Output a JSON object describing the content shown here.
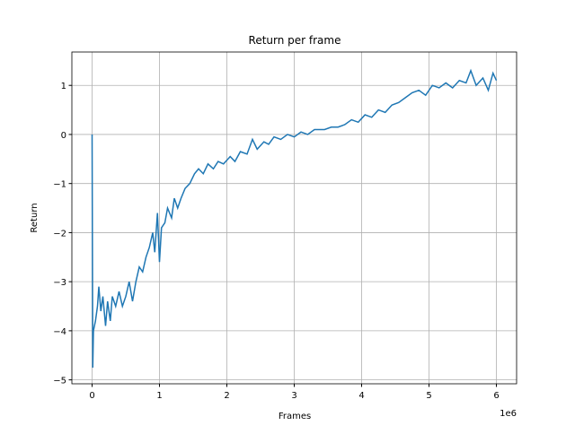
{
  "chart_data": {
    "type": "line",
    "title": "Return per frame",
    "x_label": "Frames",
    "y_label": "Return",
    "x_offset_label": "1e6",
    "x": [
      0,
      0.01,
      0.02,
      0.05,
      0.08,
      0.1,
      0.13,
      0.16,
      0.2,
      0.23,
      0.27,
      0.3,
      0.35,
      0.4,
      0.45,
      0.5,
      0.55,
      0.6,
      0.65,
      0.7,
      0.75,
      0.8,
      0.85,
      0.9,
      0.93,
      0.97,
      1.0,
      1.03,
      1.08,
      1.12,
      1.18,
      1.22,
      1.27,
      1.32,
      1.38,
      1.45,
      1.52,
      1.58,
      1.65,
      1.72,
      1.8,
      1.87,
      1.95,
      2.05,
      2.12,
      2.2,
      2.3,
      2.38,
      2.45,
      2.55,
      2.62,
      2.7,
      2.8,
      2.9,
      3.0,
      3.1,
      3.2,
      3.3,
      3.45,
      3.55,
      3.65,
      3.75,
      3.85,
      3.95,
      4.05,
      4.15,
      4.25,
      4.35,
      4.45,
      4.55,
      4.65,
      4.75,
      4.85,
      4.95,
      5.05,
      5.15,
      5.25,
      5.35,
      5.45,
      5.55,
      5.62,
      5.7,
      5.8,
      5.88,
      5.95,
      6.0
    ],
    "series": [
      {
        "color": "#1f77b4",
        "values": [
          0,
          -4.75,
          -4.0,
          -3.8,
          -3.5,
          -3.1,
          -3.6,
          -3.3,
          -3.9,
          -3.4,
          -3.8,
          -3.3,
          -3.5,
          -3.2,
          -3.5,
          -3.3,
          -3.0,
          -3.4,
          -3.0,
          -2.7,
          -2.8,
          -2.5,
          -2.3,
          -2.0,
          -2.4,
          -1.6,
          -2.6,
          -1.9,
          -1.8,
          -1.5,
          -1.7,
          -1.3,
          -1.5,
          -1.3,
          -1.1,
          -1.0,
          -0.8,
          -0.7,
          -0.8,
          -0.6,
          -0.7,
          -0.55,
          -0.6,
          -0.45,
          -0.55,
          -0.35,
          -0.4,
          -0.1,
          -0.3,
          -0.15,
          -0.2,
          -0.05,
          -0.1,
          0.0,
          -0.05,
          0.05,
          0.0,
          0.1,
          0.1,
          0.15,
          0.15,
          0.2,
          0.3,
          0.25,
          0.4,
          0.35,
          0.5,
          0.45,
          0.6,
          0.65,
          0.75,
          0.85,
          0.9,
          0.8,
          1.0,
          0.95,
          1.05,
          0.95,
          1.1,
          1.05,
          1.3,
          1.0,
          1.15,
          0.9,
          1.25,
          1.1
        ]
      }
    ],
    "xlim": [
      -0.3,
      6.3
    ],
    "ylim": [
      -5.08,
      1.68
    ],
    "xticks": [
      0,
      1,
      2,
      3,
      4,
      5,
      6
    ],
    "yticks": [
      {
        "value": -5,
        "label": "−5"
      },
      {
        "value": -4,
        "label": "−4"
      },
      {
        "value": -3,
        "label": "−3"
      },
      {
        "value": -2,
        "label": "−2"
      },
      {
        "value": -1,
        "label": "−1"
      },
      0,
      1
    ],
    "grid": true
  }
}
